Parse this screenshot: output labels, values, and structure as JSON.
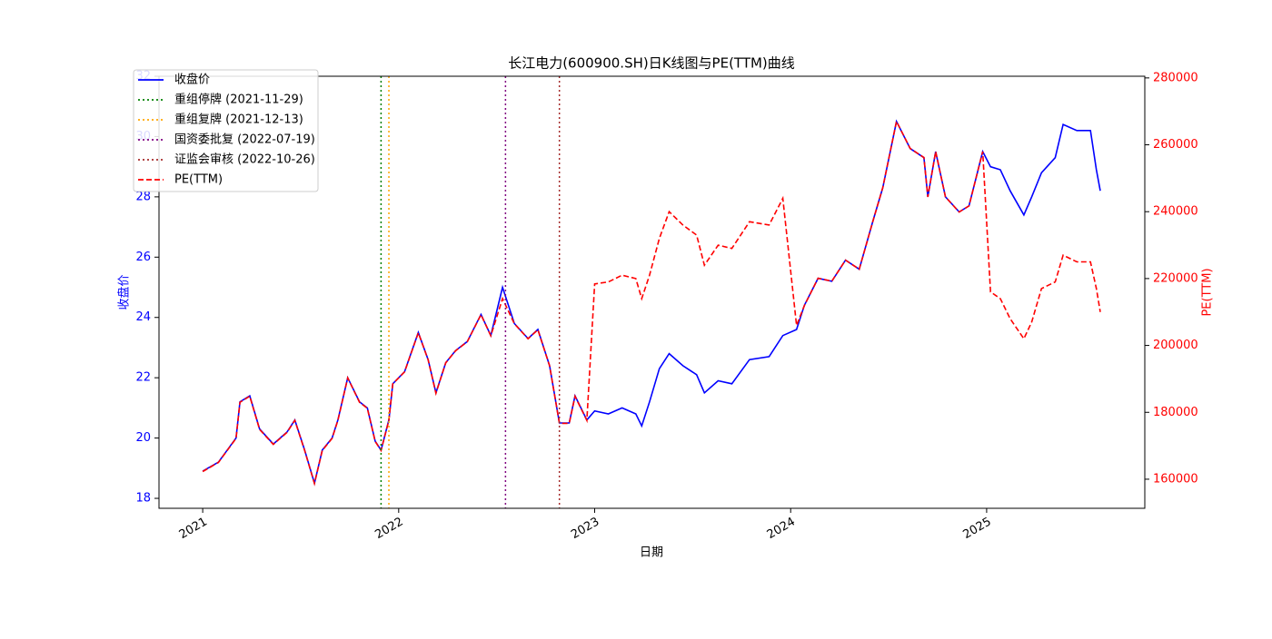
{
  "chart_data": {
    "type": "line",
    "title": "长江电力(600900.SH)日K线图与PE(TTM)曲线",
    "xlabel": "日期",
    "ylabel": "收盘价",
    "y2label": "PE(TTM)",
    "x": [
      2021.0,
      2021.08,
      2021.17,
      2021.19,
      2021.24,
      2021.29,
      2021.36,
      2021.43,
      2021.47,
      2021.52,
      2021.57,
      2021.61,
      2021.66,
      2021.69,
      2021.74,
      2021.8,
      2021.84,
      2021.88,
      2021.91,
      2021.95,
      2021.97,
      2022.03,
      2022.1,
      2022.15,
      2022.19,
      2022.24,
      2022.29,
      2022.35,
      2022.42,
      2022.47,
      2022.53,
      2022.59,
      2022.66,
      2022.71,
      2022.77,
      2022.82,
      2022.87,
      2022.9,
      2022.96,
      2023.0,
      2023.07,
      2023.14,
      2023.21,
      2023.24,
      2023.28,
      2023.33,
      2023.38,
      2023.45,
      2023.52,
      2023.56,
      2023.63,
      2023.7,
      2023.79,
      2023.89,
      2023.96,
      2024.03,
      2024.07,
      2024.14,
      2024.21,
      2024.28,
      2024.35,
      2024.42,
      2024.47,
      2024.54,
      2024.61,
      2024.68,
      2024.7,
      2024.74,
      2024.79,
      2024.86,
      2024.91,
      2024.98,
      2025.02,
      2025.07,
      2025.12,
      2025.19,
      2025.23,
      2025.28,
      2025.35,
      2025.39,
      2025.46,
      2025.53,
      2025.56,
      2025.58
    ],
    "series": [
      {
        "name": "收盘价",
        "color": "#0000ff",
        "axis": "y",
        "linestyle": "solid",
        "values": [
          18.9,
          19.2,
          20.0,
          21.2,
          21.4,
          20.3,
          19.8,
          20.2,
          20.6,
          19.6,
          18.5,
          19.6,
          20.0,
          20.6,
          22.0,
          21.2,
          21.0,
          19.9,
          19.6,
          20.6,
          21.8,
          22.2,
          23.5,
          22.6,
          21.5,
          22.5,
          22.9,
          23.2,
          24.1,
          23.4,
          25.0,
          23.8,
          23.3,
          23.6,
          22.4,
          20.5,
          20.5,
          21.4,
          20.6,
          20.9,
          20.8,
          21.0,
          20.8,
          20.4,
          21.2,
          22.3,
          22.8,
          22.4,
          22.1,
          21.5,
          21.9,
          21.8,
          22.6,
          22.7,
          23.4,
          23.6,
          24.4,
          25.3,
          25.2,
          25.9,
          25.6,
          27.2,
          28.3,
          30.5,
          29.6,
          29.3,
          28.0,
          29.5,
          28.0,
          27.5,
          27.7,
          29.5,
          29.0,
          28.9,
          28.2,
          27.4,
          28.0,
          28.8,
          29.3,
          30.4,
          30.2,
          30.2,
          28.9,
          28.2
        ]
      },
      {
        "name": "PE(TTM)",
        "color": "#ff0000",
        "axis": "y2",
        "linestyle": "dashed",
        "values": [
          162300,
          165000,
          172200,
          183000,
          184800,
          174900,
          170400,
          174000,
          177600,
          168600,
          158700,
          168600,
          172200,
          177600,
          190300,
          183000,
          181200,
          171300,
          168600,
          177600,
          188500,
          192100,
          203800,
          195700,
          185700,
          194800,
          198400,
          201100,
          209200,
          202900,
          214000,
          206500,
          202000,
          204700,
          193900,
          176700,
          176700,
          184800,
          177600,
          218400,
          219000,
          221000,
          220000,
          214000,
          221000,
          232000,
          240000,
          236000,
          233000,
          224000,
          230000,
          229000,
          237000,
          236000,
          244000,
          206000,
          211900,
          220100,
          219200,
          225500,
          222800,
          237200,
          247200,
          267000,
          258900,
          256200,
          244400,
          258000,
          244400,
          239900,
          241700,
          258000,
          216000,
          214000,
          208000,
          202000,
          207000,
          217000,
          219000,
          227000,
          225000,
          225000,
          217000,
          210000
        ]
      }
    ],
    "vlines": [
      {
        "x": 2021.91,
        "label": "重组停牌 (2021-11-29)",
        "color": "green"
      },
      {
        "x": 2021.95,
        "label": "重组复牌 (2021-12-13)",
        "color": "orange"
      },
      {
        "x": 2022.545,
        "label": "国资委批复 (2022-07-19)",
        "color": "purple"
      },
      {
        "x": 2022.82,
        "label": "证监会审核 (2022-10-26)",
        "color": "brown"
      }
    ],
    "xlim": [
      2020.777,
      2025.807
    ],
    "xticks": [
      2021,
      2022,
      2023,
      2024,
      2025
    ],
    "ylim": [
      17.67,
      32.0
    ],
    "yticks": [
      18,
      20,
      22,
      24,
      26,
      28,
      30,
      32
    ],
    "y2lim": [
      151300,
      280500
    ],
    "y2ticks": [
      160000,
      180000,
      200000,
      220000,
      240000,
      260000,
      280000
    ],
    "legend": "upper left"
  }
}
